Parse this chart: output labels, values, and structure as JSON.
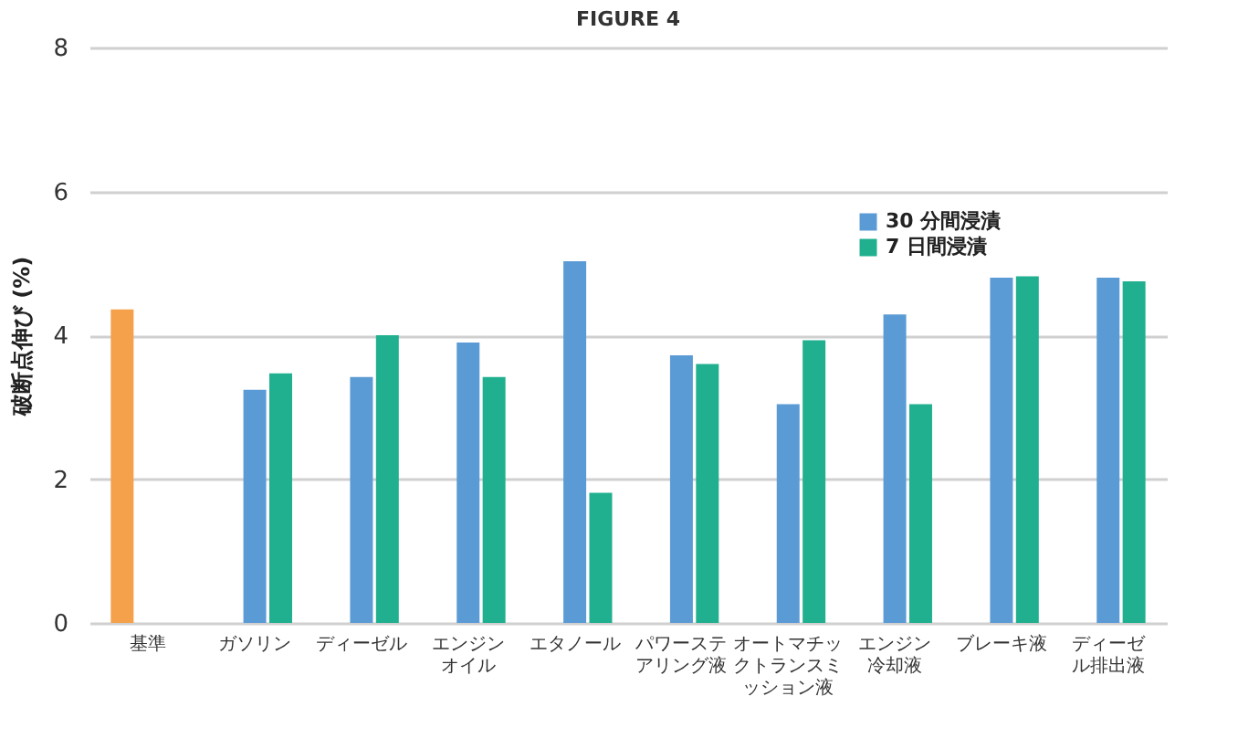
{
  "chart_data": {
    "type": "bar",
    "title": "FIGURE 4",
    "ylabel": "破断点伸び (%)",
    "categories": [
      "基準",
      "ガソリン",
      "ディーゼル",
      "エンジンオイル",
      "エタノール",
      "パワーステアリング液",
      "オートマチックトランスミッション液",
      "エンジン冷却液",
      "ブレーキ液",
      "ディーゼル排出液"
    ],
    "series": [
      {
        "color": "#f5a04a",
        "values": [
          4.36,
          null,
          null,
          null,
          null,
          null,
          null,
          null,
          null,
          null
        ]
      },
      {
        "name": "30 分間浸漬",
        "color": "#5b9bd5",
        "values": [
          null,
          3.24,
          3.42,
          3.9,
          5.03,
          3.72,
          3.04,
          4.29,
          4.8,
          4.8
        ]
      },
      {
        "name": "7 日間浸漬",
        "color": "#20b08f",
        "values": [
          null,
          3.47,
          4.0,
          3.42,
          1.81,
          3.6,
          3.93,
          3.04,
          4.82,
          4.75
        ]
      }
    ],
    "ylim": [
      0,
      8
    ],
    "yticks": [
      0,
      2,
      4,
      6,
      8
    ],
    "grid": "y",
    "legend": "top right"
  }
}
